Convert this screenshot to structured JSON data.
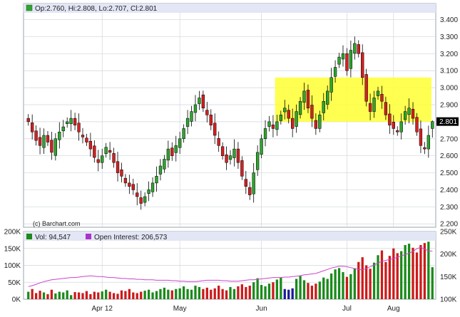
{
  "colors": {
    "up": "#2ea52e",
    "down": "#d42020",
    "wick": "#000000",
    "grid": "#cfd6dd",
    "header_band": "#e3e6f5",
    "highlight": "#ffff33",
    "open_interest_line": "#cc44cc",
    "vol_up": "#1a8a1a",
    "vol_down": "#cc1a1a",
    "vol_neutral": "#1a1a99",
    "current_price_bg": "#000000",
    "current_price_fg": "#ffffff",
    "legend_up_square": "#2ea52e",
    "legend_vol_square": "#1a8a1a",
    "legend_oi_square": "#aa33cc"
  },
  "legend": {
    "price": "Op:2.760, Hi:2.808, Lo:2.707, Cl:2.801",
    "volume": "Vol: 94,547",
    "open_interest": "Open Interest: 206,573",
    "watermark": "(c) Barchart.com"
  },
  "current_price_label": "2.801",
  "chart_data": [
    {
      "type": "candlestick",
      "y_ticks": [
        "2.200",
        "2.300",
        "2.400",
        "2.500",
        "2.600",
        "2.700",
        "2.800",
        "2.900",
        "3.000",
        "3.100",
        "3.200",
        "3.300",
        "3.400"
      ],
      "ylim": [
        2.18,
        3.44
      ],
      "x_month_labels": [
        "Apr 12",
        "May",
        "Jun",
        "Jul",
        "Aug"
      ],
      "highlight_zone": {
        "y_low": 2.8,
        "y_high": 3.06
      },
      "last": {
        "open": 2.76,
        "high": 2.808,
        "low": 2.707,
        "close": 2.801
      },
      "closes": [
        2.8,
        2.74,
        2.69,
        2.66,
        2.72,
        2.68,
        2.62,
        2.7,
        2.74,
        2.77,
        2.8,
        2.82,
        2.78,
        2.74,
        2.71,
        2.68,
        2.64,
        2.59,
        2.56,
        2.6,
        2.65,
        2.62,
        2.56,
        2.5,
        2.48,
        2.44,
        2.42,
        2.4,
        2.36,
        2.32,
        2.36,
        2.4,
        2.44,
        2.48,
        2.54,
        2.58,
        2.64,
        2.6,
        2.66,
        2.7,
        2.76,
        2.82,
        2.86,
        2.9,
        2.94,
        2.88,
        2.84,
        2.78,
        2.72,
        2.66,
        2.6,
        2.56,
        2.6,
        2.64,
        2.56,
        2.48,
        2.42,
        2.37,
        2.5,
        2.62,
        2.7,
        2.76,
        2.8,
        2.76,
        2.8,
        2.84,
        2.88,
        2.82,
        2.76,
        2.86,
        2.92,
        2.98,
        2.88,
        2.82,
        2.76,
        2.84,
        2.92,
        2.98,
        3.06,
        3.12,
        3.18,
        3.2,
        3.1,
        3.22,
        3.26,
        3.2,
        3.06,
        2.92,
        2.86,
        2.94,
        2.98,
        2.92,
        2.84,
        2.78,
        2.76,
        2.74,
        2.8,
        2.86,
        2.88,
        2.82,
        2.74,
        2.66,
        2.64,
        2.72,
        2.801
      ]
    },
    {
      "type": "bar",
      "left_ticks": [
        "0K",
        "50K",
        "100K",
        "150K",
        "200K"
      ],
      "right_ticks": [
        "100K",
        "150K",
        "200K",
        "250K"
      ],
      "volume_ylim": [
        0,
        200
      ],
      "oi_ylim": [
        100,
        250
      ],
      "volume": [
        22,
        30,
        18,
        25,
        20,
        15,
        28,
        17,
        22,
        20,
        26,
        12,
        21,
        20,
        18,
        24,
        15,
        22,
        20,
        23,
        28,
        22,
        18,
        16,
        26,
        24,
        30,
        20,
        18,
        22,
        25,
        28,
        20,
        24,
        30,
        34,
        28,
        26,
        30,
        32,
        38,
        30,
        28,
        40,
        36,
        30,
        34,
        28,
        32,
        40,
        30,
        26,
        36,
        30,
        38,
        44,
        36,
        40,
        50,
        62,
        42,
        38,
        46,
        50,
        58,
        64,
        30,
        28,
        32,
        60,
        70,
        56,
        48,
        40,
        46,
        52,
        64,
        60,
        76,
        88,
        92,
        80,
        66,
        74,
        90,
        110,
        124,
        100,
        90,
        108,
        130,
        144,
        110,
        128,
        150,
        136,
        142,
        160,
        164,
        152,
        138,
        160,
        166,
        170,
        94.547
      ],
      "open_interest": [
        128,
        130,
        133,
        136,
        139,
        141,
        143,
        144,
        145,
        146,
        147,
        148,
        148,
        149,
        150,
        151,
        152,
        151,
        150,
        150,
        149,
        148,
        148,
        147,
        146,
        146,
        145,
        145,
        144,
        144,
        143,
        143,
        143,
        142,
        142,
        142,
        142,
        141,
        141,
        140,
        140,
        139,
        139,
        139,
        140,
        141,
        142,
        142,
        142,
        142,
        141,
        141,
        140,
        140,
        140,
        141,
        142,
        143,
        143,
        144,
        145,
        146,
        147,
        148,
        148,
        148,
        149,
        149,
        150,
        151,
        152,
        154,
        155,
        156,
        157,
        160,
        163,
        166,
        169,
        171,
        173,
        173,
        172,
        170,
        168,
        166,
        165,
        168,
        172,
        176,
        180,
        184,
        186,
        188,
        190,
        193,
        196,
        199,
        202,
        206,
        212,
        215,
        211,
        207,
        206.573
      ]
    }
  ]
}
